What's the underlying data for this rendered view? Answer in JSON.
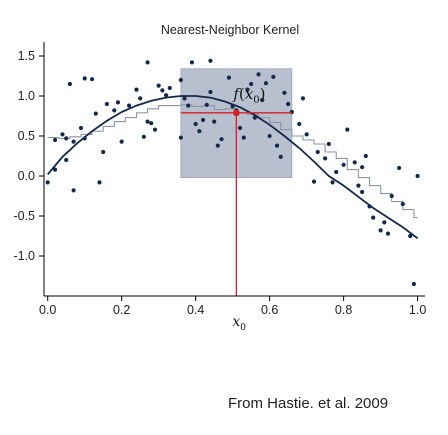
{
  "caption": "From Hastie. et al. 2009",
  "chart_data": {
    "type": "scatter",
    "title": "Nearest-Neighbor Kernel",
    "xlabel": "",
    "ylabel": "",
    "xlim": [
      -0.01,
      1.02
    ],
    "ylim": [
      -1.5,
      1.65
    ],
    "x_ticks": [
      0.0,
      0.2,
      0.4,
      0.6,
      0.8,
      1.0
    ],
    "x_tick_labels": [
      "0.0",
      "0.2",
      "0.4",
      "0.6",
      "0.8",
      "1.0"
    ],
    "y_ticks": [
      -1.0,
      -0.5,
      0.0,
      0.5,
      1.0,
      1.5
    ],
    "y_tick_labels": [
      "-1.0",
      "-0.5",
      "0.0",
      "0.5",
      "1.0",
      "1.5"
    ],
    "grid": false,
    "x0": {
      "value": 0.51,
      "label_main": "x",
      "label_sub": "0"
    },
    "window": {
      "x": [
        0.36,
        0.66
      ],
      "y": [
        -0.02,
        1.34
      ]
    },
    "estimate": {
      "x": 0.51,
      "y": 0.79,
      "hbar_x": [
        0.36,
        0.66
      ],
      "label_main": "f",
      "label_paren_open": "(",
      "label_x": "x",
      "label_sub": "0",
      "label_paren_close": ")"
    },
    "series": [
      {
        "kind": "points",
        "color": "#13294b",
        "x": [
          0.0,
          0.02,
          0.02,
          0.04,
          0.05,
          0.05,
          0.06,
          0.07,
          0.07,
          0.09,
          0.1,
          0.1,
          0.12,
          0.13,
          0.14,
          0.15,
          0.16,
          0.18,
          0.19,
          0.2,
          0.22,
          0.24,
          0.25,
          0.26,
          0.27,
          0.27,
          0.28,
          0.29,
          0.3,
          0.31,
          0.32,
          0.33,
          0.36,
          0.36,
          0.37,
          0.38,
          0.39,
          0.4,
          0.41,
          0.42,
          0.43,
          0.44,
          0.44,
          0.45,
          0.46,
          0.47,
          0.49,
          0.5,
          0.51,
          0.52,
          0.53,
          0.54,
          0.55,
          0.56,
          0.57,
          0.58,
          0.59,
          0.6,
          0.61,
          0.62,
          0.63,
          0.64,
          0.65,
          0.66,
          0.68,
          0.69,
          0.7,
          0.72,
          0.73,
          0.75,
          0.76,
          0.77,
          0.78,
          0.8,
          0.81,
          0.83,
          0.84,
          0.85,
          0.85,
          0.86,
          0.87,
          0.88,
          0.9,
          0.91,
          0.92,
          0.93,
          0.95,
          0.96,
          0.98,
          0.99,
          1.0
        ],
        "y": [
          -0.08,
          0.45,
          0.08,
          0.52,
          0.2,
          0.47,
          1.15,
          -0.18,
          0.43,
          0.6,
          1.22,
          0.47,
          1.21,
          0.78,
          -0.08,
          0.3,
          0.9,
          0.82,
          0.92,
          0.43,
          0.88,
          1.08,
          0.97,
          0.49,
          0.68,
          1.42,
          0.66,
          0.58,
          1.13,
          1.07,
          1.01,
          1.1,
          0.48,
          1.2,
          0.97,
          0.88,
          1.42,
          0.65,
          0.56,
          0.7,
          0.89,
          1.05,
          1.44,
          0.68,
          0.38,
          0.46,
          1.23,
          0.87,
          0.82,
          0.6,
          0.48,
          1.08,
          1.15,
          0.73,
          1.27,
          0.95,
          1.16,
          0.5,
          1.24,
          0.38,
          0.24,
          1.04,
          0.9,
          0.8,
          0.65,
          0.97,
          0.52,
          -0.07,
          0.3,
          0.22,
          0.4,
          -0.08,
          0.05,
          0.14,
          0.58,
          0.17,
          -0.12,
          0.11,
          -0.2,
          0.25,
          -0.38,
          -0.52,
          -0.68,
          -0.58,
          -0.72,
          -0.25,
          0.1,
          -0.35,
          -0.75,
          -1.35,
          0.0
        ]
      },
      {
        "kind": "true-curve",
        "color": "#13294b",
        "x": [
          0.0,
          0.04,
          0.08,
          0.12,
          0.16,
          0.2,
          0.24,
          0.28,
          0.32,
          0.36,
          0.4,
          0.44,
          0.48,
          0.52,
          0.56,
          0.6,
          0.64,
          0.68,
          0.72,
          0.76,
          0.8,
          0.84,
          0.88,
          0.92,
          0.96,
          1.0
        ],
        "y": [
          0.02,
          0.24,
          0.41,
          0.56,
          0.69,
          0.8,
          0.88,
          0.94,
          0.98,
          1.0,
          1.0,
          0.98,
          0.93,
          0.86,
          0.76,
          0.64,
          0.5,
          0.35,
          0.18,
          0.0,
          -0.12,
          -0.26,
          -0.4,
          -0.52,
          -0.64,
          -0.78
        ]
      },
      {
        "kind": "knn-fit",
        "color": "#8e96a6",
        "x": [
          0.0,
          0.03,
          0.06,
          0.09,
          0.12,
          0.15,
          0.18,
          0.21,
          0.24,
          0.27,
          0.3,
          0.33,
          0.36,
          0.39,
          0.42,
          0.45,
          0.48,
          0.51,
          0.54,
          0.57,
          0.6,
          0.63,
          0.66,
          0.69,
          0.72,
          0.75,
          0.78,
          0.81,
          0.84,
          0.87,
          0.9,
          0.93,
          0.96,
          0.99,
          1.0
        ],
        "y": [
          0.48,
          0.47,
          0.49,
          0.52,
          0.56,
          0.62,
          0.68,
          0.73,
          0.79,
          0.84,
          0.88,
          0.88,
          0.89,
          0.87,
          0.88,
          0.83,
          0.84,
          0.79,
          0.77,
          0.73,
          0.67,
          0.58,
          0.5,
          0.45,
          0.4,
          0.3,
          0.22,
          0.08,
          -0.02,
          -0.12,
          -0.22,
          -0.32,
          -0.42,
          -0.52,
          -0.52
        ]
      }
    ],
    "colors": {
      "window_fill": "#b8c0cf",
      "window_stroke": "#9ba5b8",
      "marker": "#d52026",
      "axis": "#000000"
    }
  }
}
